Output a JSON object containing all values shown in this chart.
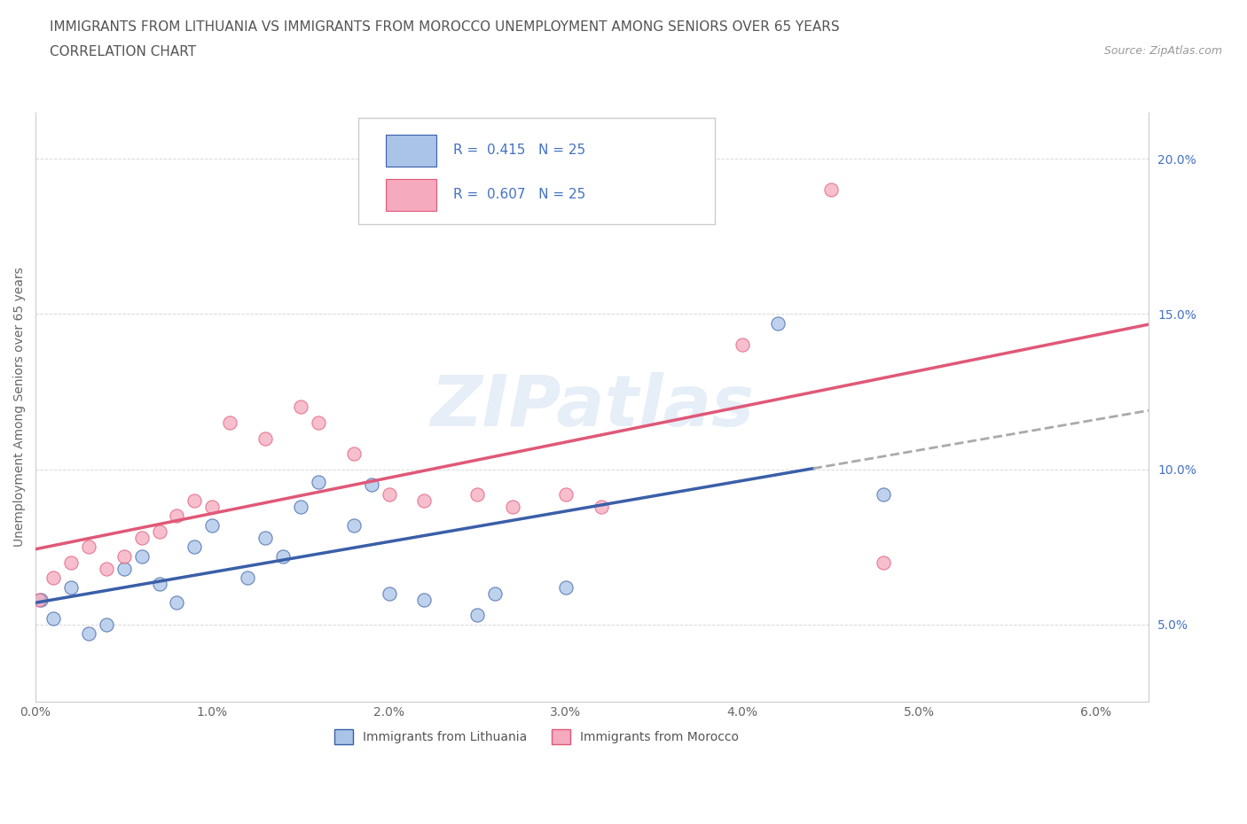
{
  "title_line1": "IMMIGRANTS FROM LITHUANIA VS IMMIGRANTS FROM MOROCCO UNEMPLOYMENT AMONG SENIORS OVER 65 YEARS",
  "title_line2": "CORRELATION CHART",
  "source_text": "Source: ZipAtlas.com",
  "ylabel": "Unemployment Among Seniors over 65 years",
  "xlim": [
    0.0,
    0.063
  ],
  "ylim": [
    0.025,
    0.215
  ],
  "xticks": [
    0.0,
    0.01,
    0.02,
    0.03,
    0.04,
    0.05,
    0.06
  ],
  "yticks": [
    0.05,
    0.1,
    0.15,
    0.2
  ],
  "xtick_labels": [
    "0.0%",
    "1.0%",
    "2.0%",
    "3.0%",
    "4.0%",
    "5.0%",
    "6.0%"
  ],
  "ytick_labels": [
    "5.0%",
    "10.0%",
    "15.0%",
    "20.0%"
  ],
  "lithuania_x": [
    0.0003,
    0.001,
    0.002,
    0.003,
    0.004,
    0.005,
    0.006,
    0.007,
    0.008,
    0.009,
    0.01,
    0.012,
    0.013,
    0.014,
    0.015,
    0.016,
    0.018,
    0.019,
    0.02,
    0.022,
    0.025,
    0.026,
    0.03,
    0.042,
    0.048
  ],
  "lithuania_y": [
    0.058,
    0.052,
    0.062,
    0.047,
    0.05,
    0.068,
    0.072,
    0.063,
    0.057,
    0.075,
    0.082,
    0.065,
    0.078,
    0.072,
    0.088,
    0.096,
    0.082,
    0.095,
    0.06,
    0.058,
    0.053,
    0.06,
    0.062,
    0.147,
    0.092
  ],
  "morocco_x": [
    0.0002,
    0.001,
    0.002,
    0.003,
    0.004,
    0.005,
    0.006,
    0.007,
    0.008,
    0.009,
    0.01,
    0.011,
    0.013,
    0.015,
    0.016,
    0.018,
    0.02,
    0.022,
    0.025,
    0.027,
    0.03,
    0.032,
    0.04,
    0.045,
    0.048
  ],
  "morocco_y": [
    0.058,
    0.065,
    0.07,
    0.075,
    0.068,
    0.072,
    0.078,
    0.08,
    0.085,
    0.09,
    0.088,
    0.115,
    0.11,
    0.12,
    0.115,
    0.105,
    0.092,
    0.09,
    0.092,
    0.088,
    0.092,
    0.088,
    0.14,
    0.19,
    0.07
  ],
  "lithuania_color": "#aac4e8",
  "morocco_color": "#f5aabe",
  "lithuania_line_color": "#3a5fa8",
  "morocco_line_color": "#e05878",
  "R_lithuania": "0.415",
  "R_morocco": "0.607",
  "N_lithuania": "25",
  "N_morocco": "25",
  "legend_label_1": "Immigrants from Lithuania",
  "legend_label_2": "Immigrants from Morocco",
  "watermark": "ZIPatlas",
  "background_color": "#ffffff",
  "grid_color": "#d8d8d8",
  "title_fontsize": 11,
  "label_fontsize": 10,
  "tick_fontsize": 10,
  "right_yaxis_color": "#4472c4"
}
